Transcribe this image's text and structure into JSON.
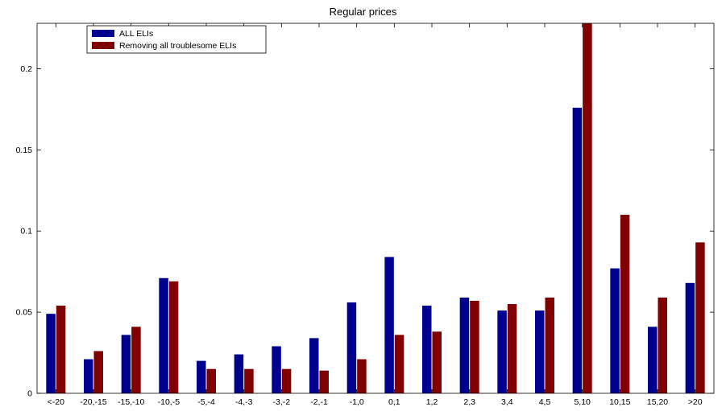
{
  "chart_data": {
    "type": "bar",
    "title": "Regular prices",
    "xlabel": "",
    "ylabel": "",
    "ylim": [
      0,
      0.228
    ],
    "yticks": [
      0,
      0.05,
      0.1,
      0.15,
      0.2
    ],
    "ytick_labels": [
      "0",
      "0.05",
      "0.1",
      "0.15",
      "0.2"
    ],
    "grid": false,
    "legend_position": "top-left",
    "categories": [
      "<-20",
      "-20,-15",
      "-15,-10",
      "-10,-5",
      "-5,-4",
      "-4,-3",
      "-3,-2",
      "-2,-1",
      "-1,0",
      "0,1",
      "1,2",
      "2,3",
      "3,4",
      "4,5",
      "5,10",
      "10,15",
      "15,20",
      ">20"
    ],
    "series": [
      {
        "name": "ALL ELIs",
        "color": "#00008f",
        "values": [
          0.049,
          0.021,
          0.036,
          0.071,
          0.02,
          0.024,
          0.029,
          0.034,
          0.056,
          0.084,
          0.054,
          0.059,
          0.051,
          0.051,
          0.176,
          0.077,
          0.041,
          0.068
        ]
      },
      {
        "name": "Removing all troublesome ELIs",
        "color": "#800000",
        "values": [
          0.054,
          0.026,
          0.041,
          0.069,
          0.015,
          0.015,
          0.015,
          0.014,
          0.021,
          0.036,
          0.038,
          0.057,
          0.055,
          0.059,
          0.228,
          0.11,
          0.059,
          0.093
        ]
      }
    ]
  }
}
